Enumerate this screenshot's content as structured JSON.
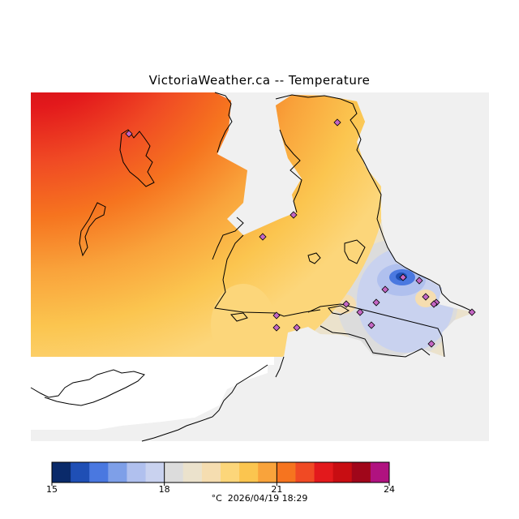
{
  "title": "VictoriaWeather.ca -- Temperature",
  "legend": {
    "min": 15,
    "max": 24,
    "tick_labels": [
      "15",
      "18",
      "21",
      "24"
    ],
    "tick_values": [
      15,
      18,
      21,
      24
    ],
    "units": "°C",
    "timestamp": "2026/04/19 18:29",
    "colors": [
      "#0a2a6a",
      "#1f4fb5",
      "#4a78e0",
      "#7e9fe8",
      "#b0c0ee",
      "#c9d2ef",
      "#dcdcdc",
      "#ebe2cc",
      "#f5ddb0",
      "#fcd67a",
      "#fbc54f",
      "#f9a33b",
      "#f6741f",
      "#f04a24",
      "#e3191c",
      "#c80d12",
      "#a0061a",
      "#b01280"
    ]
  },
  "map": {
    "background_color": "#f0f0f0",
    "water_color": "#ffffff",
    "station_color": "#c466c4"
  }
}
